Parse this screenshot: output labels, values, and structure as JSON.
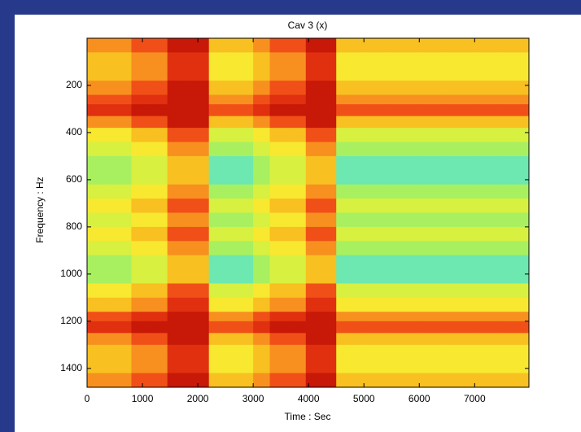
{
  "chart_data": {
    "type": "heatmap",
    "title": "Cav 3 (x)",
    "x_label": "Time : Sec",
    "y_label": "Frequency : Hz",
    "xlim": [
      0,
      7980
    ],
    "ylim": [
      0,
      1480
    ],
    "y_inverted": true,
    "xticks": [
      0,
      1000,
      2000,
      3000,
      4000,
      5000,
      6000,
      7000
    ],
    "yticks": [
      200,
      400,
      600,
      800,
      1000,
      1200,
      1400
    ],
    "x_edges": [
      0,
      400,
      800,
      1100,
      1450,
      1800,
      2200,
      2600,
      3000,
      3300,
      3650,
      3950,
      4250,
      4500,
      5000,
      5500,
      6000,
      6500,
      7000,
      7500,
      7980
    ],
    "y_edges": [
      0,
      60,
      120,
      180,
      240,
      280,
      330,
      380,
      440,
      500,
      560,
      620,
      680,
      740,
      800,
      860,
      920,
      980,
      1040,
      1100,
      1160,
      1200,
      1250,
      1300,
      1360,
      1420,
      1480
    ],
    "colorscale": [
      "#30d8d0",
      "#40e0c0",
      "#6ce8b0",
      "#a8f060",
      "#d8f040",
      "#f8e830",
      "#f8c020",
      "#f89020",
      "#f05018",
      "#e03010",
      "#c81808"
    ],
    "values": [
      [
        7,
        7,
        8,
        8,
        10,
        10,
        6,
        6,
        7,
        8,
        8,
        10,
        10,
        6,
        6,
        6,
        6,
        6,
        6,
        6
      ],
      [
        6,
        6,
        7,
        7,
        9,
        9,
        5,
        5,
        6,
        7,
        7,
        9,
        9,
        5,
        5,
        5,
        5,
        5,
        5,
        5
      ],
      [
        6,
        6,
        7,
        7,
        9,
        9,
        5,
        5,
        6,
        7,
        7,
        9,
        9,
        5,
        5,
        5,
        5,
        5,
        5,
        5
      ],
      [
        7,
        7,
        8,
        8,
        10,
        10,
        6,
        6,
        7,
        8,
        8,
        10,
        10,
        6,
        6,
        6,
        6,
        6,
        6,
        6
      ],
      [
        8,
        8,
        9,
        9,
        10,
        10,
        7,
        7,
        8,
        9,
        9,
        10,
        10,
        7,
        7,
        7,
        7,
        7,
        7,
        7
      ],
      [
        9,
        9,
        10,
        10,
        10,
        10,
        8,
        8,
        9,
        10,
        10,
        10,
        10,
        8,
        8,
        8,
        8,
        8,
        8,
        8
      ],
      [
        7,
        7,
        8,
        8,
        10,
        10,
        6,
        6,
        7,
        8,
        8,
        10,
        10,
        6,
        6,
        6,
        6,
        6,
        6,
        6
      ],
      [
        5,
        5,
        6,
        6,
        8,
        8,
        4,
        4,
        5,
        6,
        6,
        8,
        8,
        4,
        4,
        4,
        4,
        4,
        4,
        4
      ],
      [
        4,
        4,
        5,
        5,
        7,
        7,
        3,
        3,
        4,
        5,
        5,
        7,
        7,
        3,
        3,
        3,
        3,
        3,
        3,
        3
      ],
      [
        3,
        3,
        4,
        4,
        6,
        6,
        2,
        2,
        3,
        4,
        4,
        6,
        6,
        2,
        2,
        2,
        2,
        2,
        2,
        2
      ],
      [
        3,
        3,
        4,
        4,
        6,
        6,
        2,
        2,
        3,
        4,
        4,
        6,
        6,
        2,
        2,
        2,
        2,
        2,
        2,
        2
      ],
      [
        4,
        4,
        5,
        5,
        7,
        7,
        3,
        3,
        4,
        5,
        5,
        7,
        7,
        3,
        3,
        3,
        3,
        3,
        3,
        3
      ],
      [
        5,
        5,
        6,
        6,
        8,
        8,
        4,
        4,
        5,
        6,
        6,
        8,
        8,
        4,
        4,
        4,
        4,
        4,
        4,
        4
      ],
      [
        4,
        4,
        5,
        5,
        7,
        7,
        3,
        3,
        4,
        5,
        5,
        7,
        7,
        3,
        3,
        3,
        3,
        3,
        3,
        3
      ],
      [
        5,
        5,
        6,
        6,
        8,
        8,
        4,
        4,
        5,
        6,
        6,
        8,
        8,
        4,
        4,
        4,
        4,
        4,
        4,
        4
      ],
      [
        4,
        4,
        5,
        5,
        7,
        7,
        3,
        3,
        4,
        5,
        5,
        7,
        7,
        3,
        3,
        3,
        3,
        3,
        3,
        3
      ],
      [
        3,
        3,
        4,
        4,
        6,
        6,
        2,
        2,
        3,
        4,
        4,
        6,
        6,
        2,
        2,
        2,
        2,
        2,
        2,
        2
      ],
      [
        3,
        3,
        4,
        4,
        6,
        6,
        2,
        2,
        3,
        4,
        4,
        6,
        6,
        2,
        2,
        2,
        2,
        2,
        2,
        2
      ],
      [
        5,
        5,
        6,
        6,
        8,
        8,
        4,
        4,
        5,
        6,
        6,
        8,
        8,
        4,
        4,
        4,
        4,
        4,
        4,
        4
      ],
      [
        6,
        6,
        7,
        7,
        9,
        9,
        5,
        5,
        6,
        7,
        7,
        9,
        9,
        5,
        5,
        5,
        5,
        5,
        5,
        5
      ],
      [
        8,
        8,
        9,
        9,
        10,
        10,
        7,
        7,
        8,
        9,
        9,
        10,
        10,
        7,
        7,
        7,
        7,
        7,
        7,
        7
      ],
      [
        9,
        9,
        10,
        10,
        10,
        10,
        8,
        8,
        9,
        10,
        10,
        10,
        10,
        8,
        8,
        8,
        8,
        8,
        8,
        8
      ],
      [
        7,
        7,
        8,
        8,
        10,
        10,
        6,
        6,
        7,
        8,
        8,
        10,
        10,
        6,
        6,
        6,
        6,
        6,
        6,
        6
      ],
      [
        6,
        6,
        7,
        7,
        9,
        9,
        5,
        5,
        6,
        7,
        7,
        9,
        9,
        5,
        5,
        5,
        5,
        5,
        5,
        5
      ],
      [
        6,
        6,
        7,
        7,
        9,
        9,
        5,
        5,
        6,
        7,
        7,
        9,
        9,
        5,
        5,
        5,
        5,
        5,
        5,
        5
      ],
      [
        7,
        7,
        8,
        8,
        10,
        10,
        6,
        6,
        7,
        8,
        8,
        10,
        10,
        6,
        6,
        6,
        6,
        6,
        6,
        6
      ]
    ]
  }
}
